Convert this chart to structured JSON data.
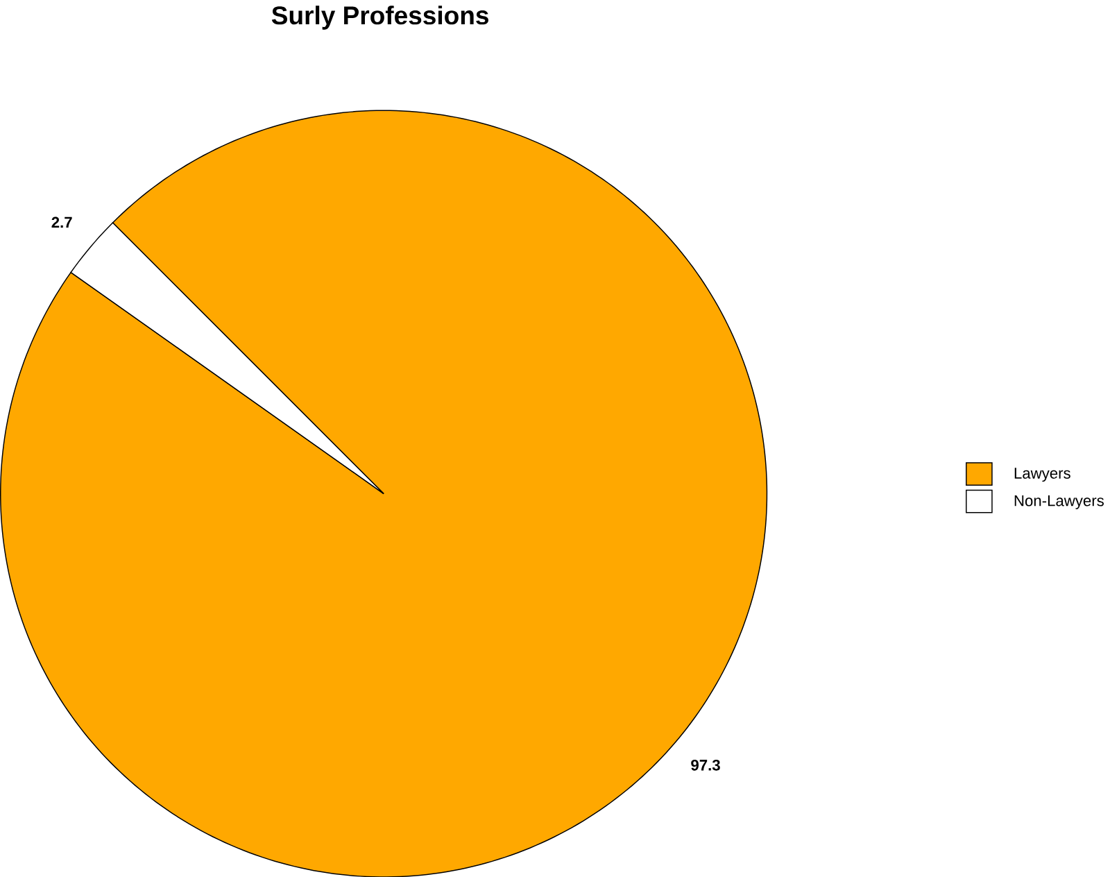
{
  "chart_data": {
    "type": "pie",
    "title": "Surly Professions",
    "categories": [
      "Lawyers",
      "Non-Lawyers"
    ],
    "values": [
      97.3,
      2.7
    ],
    "colors": [
      "#ffa800",
      "#ffffff"
    ],
    "data_labels": true,
    "legend": "right"
  }
}
